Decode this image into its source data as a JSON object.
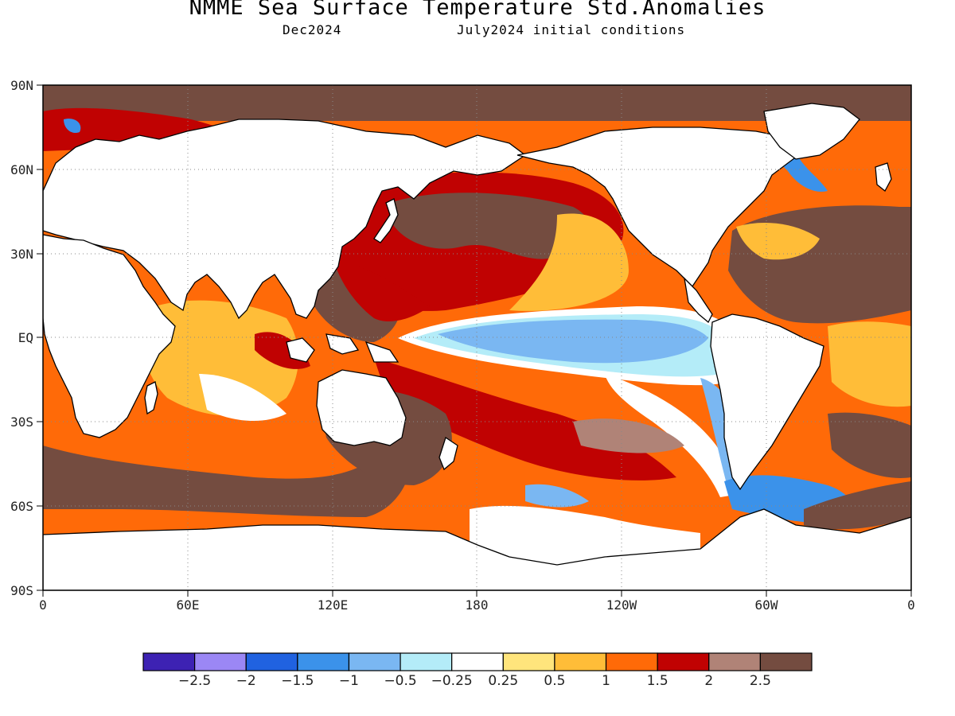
{
  "title": "NMME Sea Surface Temperature Std.Anomalies",
  "valid_label": "Dec2024",
  "init_label": "July2024 initial conditions",
  "map": {
    "projection": "cylindrical-equidistant",
    "lon_range": [
      0,
      360
    ],
    "lat_range": [
      -90,
      90
    ],
    "lat_labels": [
      "90N",
      "60N",
      "30N",
      "EQ",
      "30S",
      "60S",
      "90S"
    ],
    "lon_labels": [
      "0",
      "60E",
      "120E",
      "180",
      "120W",
      "60W",
      "0"
    ],
    "land_color": "#ffffff",
    "coastline_color": "#000000",
    "grid": "dotted"
  },
  "colorbar": {
    "colors": [
      "#3d22b3",
      "#9b87f5",
      "#2062e0",
      "#3b92ea",
      "#7ab7f2",
      "#b4ecf8",
      "#ffffff",
      "#ffe57c",
      "#ffbd38",
      "#ff6a08",
      "#c00202",
      "#b08377",
      "#744c40"
    ],
    "labels": [
      "-2.5",
      "-2",
      "-1.5",
      "-1",
      "-0.5",
      "-0.25",
      "0.25",
      "0.5",
      "1",
      "1.5",
      "2",
      "2.5"
    ]
  }
}
